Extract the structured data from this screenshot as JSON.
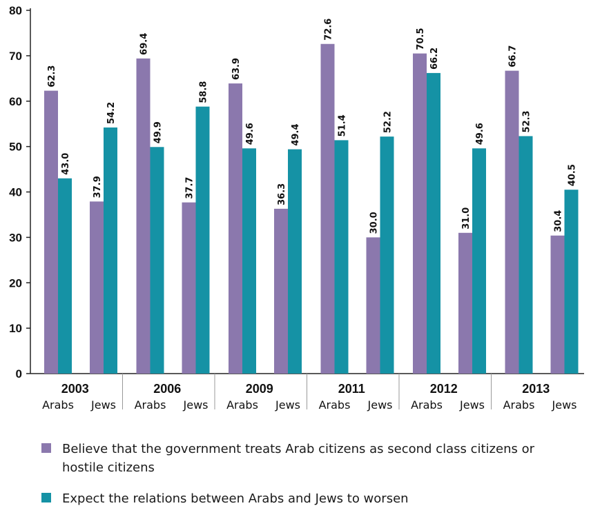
{
  "chart_data": {
    "type": "bar",
    "title": "",
    "xlabel": "",
    "ylabel": "",
    "ylim": [
      0,
      80
    ],
    "yticks": [
      0,
      10,
      20,
      30,
      40,
      50,
      60,
      70,
      80
    ],
    "grid": false,
    "legend_position": "bottom",
    "years": [
      "2003",
      "2006",
      "2009",
      "2011",
      "2012",
      "2013"
    ],
    "groups": [
      "Arabs",
      "Jews"
    ],
    "series": [
      {
        "name": "Believe that the government treats Arab citizens as second class citizens or hostile citizens",
        "color": "#8b78ad",
        "values": {
          "Arabs": [
            62.3,
            69.4,
            63.9,
            72.6,
            70.5,
            66.7
          ],
          "Jews": [
            37.9,
            37.7,
            36.3,
            30.0,
            31.0,
            30.4
          ]
        }
      },
      {
        "name": "Expect the relations between Arabs and Jews to worsen",
        "color": "#1592a5",
        "values": {
          "Arabs": [
            43.0,
            49.9,
            49.6,
            51.4,
            66.2,
            52.3
          ],
          "Jews": [
            54.2,
            58.8,
            49.4,
            52.2,
            49.6,
            40.5
          ]
        }
      }
    ]
  },
  "legend": {
    "items": [
      {
        "label": "Believe that the government treats Arab citizens as second class citizens or hostile citizens",
        "color": "#8b78ad"
      },
      {
        "label": "Expect the relations between Arabs and Jews to worsen",
        "color": "#1592a5"
      }
    ]
  }
}
